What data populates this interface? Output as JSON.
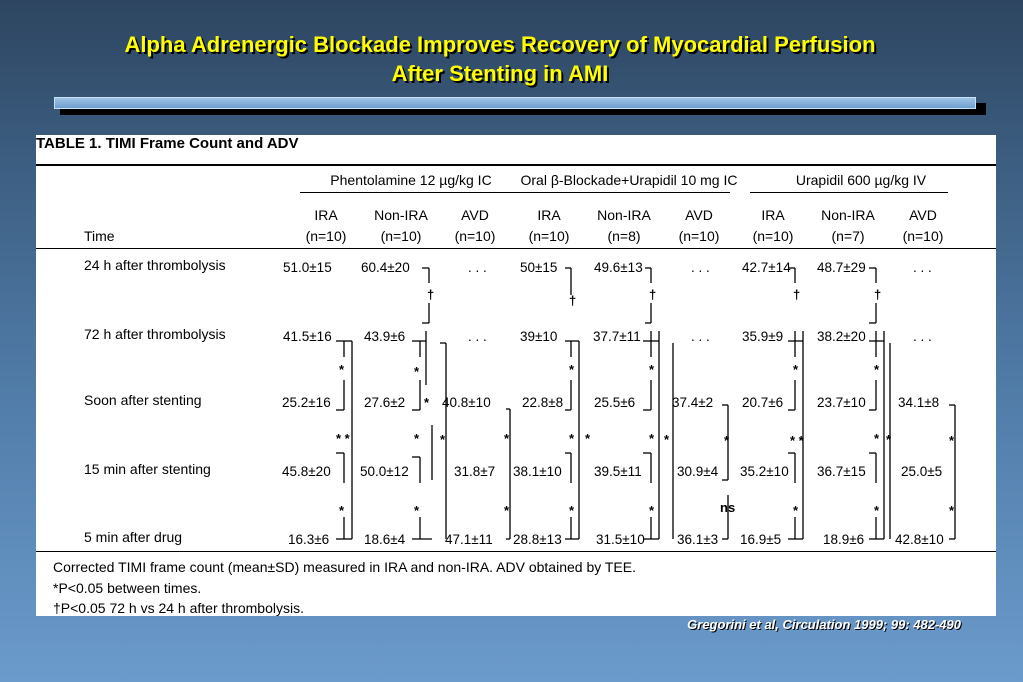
{
  "slide_title": {
    "line1": "Alpha Adrenergic Blockade Improves Recovery of Myocardial Perfusion",
    "line2": "After Stenting in AMI"
  },
  "table": {
    "title": "TABLE 1.   TIMI Frame Count and ADV",
    "groups": [
      "Phentolamine 12 µg/kg IC",
      "Oral β-Blockade+Urapidil 10 mg IC",
      "Urapidil 600 µg/kg IV"
    ],
    "time_header": "Time",
    "columns": [
      {
        "label": "IRA",
        "n": "(n=10)"
      },
      {
        "label": "Non-IRA",
        "n": "(n=10)"
      },
      {
        "label": "AVD",
        "n": "(n=10)"
      },
      {
        "label": "IRA",
        "n": "(n=10)"
      },
      {
        "label": "Non-IRA",
        "n": "(n=8)"
      },
      {
        "label": "AVD",
        "n": "(n=10)"
      },
      {
        "label": "IRA",
        "n": "(n=10)"
      },
      {
        "label": "Non-IRA",
        "n": "(n=7)"
      },
      {
        "label": "AVD",
        "n": "(n=10)"
      }
    ],
    "rows": [
      {
        "time": "24 h after thrombolysis",
        "values": [
          "51.0±15",
          "60.4±20",
          ". . .",
          "50±15",
          "49.6±13",
          ". . .",
          "42.7±14",
          "48.7±29",
          ". . ."
        ]
      },
      {
        "time": "72 h after thrombolysis",
        "values": [
          "41.5±16",
          "43.9±6",
          ". . .",
          "39±10",
          "37.7±11",
          ". . .",
          "35.9±9",
          "38.2±20",
          ". . ."
        ]
      },
      {
        "time": "Soon after stenting",
        "values": [
          "25.2±16",
          "27.6±2",
          "40.8±10",
          "22.8±8",
          "25.5±6",
          "37.4±2",
          "20.7±6",
          "23.7±10",
          "34.1±8"
        ]
      },
      {
        "time": "15 min after stenting",
        "values": [
          "45.8±20",
          "50.0±12",
          "31.8±7",
          "38.1±10",
          "39.5±11",
          "30.9±4",
          "35.2±10",
          "36.7±15",
          "25.0±5"
        ]
      },
      {
        "time": "5 min after drug",
        "values": [
          "16.3±6",
          "18.6±4",
          "47.1±11",
          "28.8±13",
          "31.5±10",
          "36.1±3",
          "16.9±5",
          "18.9±6",
          "42.8±10"
        ]
      }
    ],
    "marks": {
      "star": "*",
      "double_star": "* *",
      "dagger": "†",
      "ns": "ns"
    },
    "footnotes": [
      "Corrected TIMI frame count (mean±SD) measured in IRA and non-IRA. ADV obtained by TEE.",
      "*P<0.05 between times.",
      "†P<0.05 72 h vs 24 h after thrombolysis."
    ]
  },
  "citation": "Gregorini et al, Circulation 1999; 99: 482-490"
}
